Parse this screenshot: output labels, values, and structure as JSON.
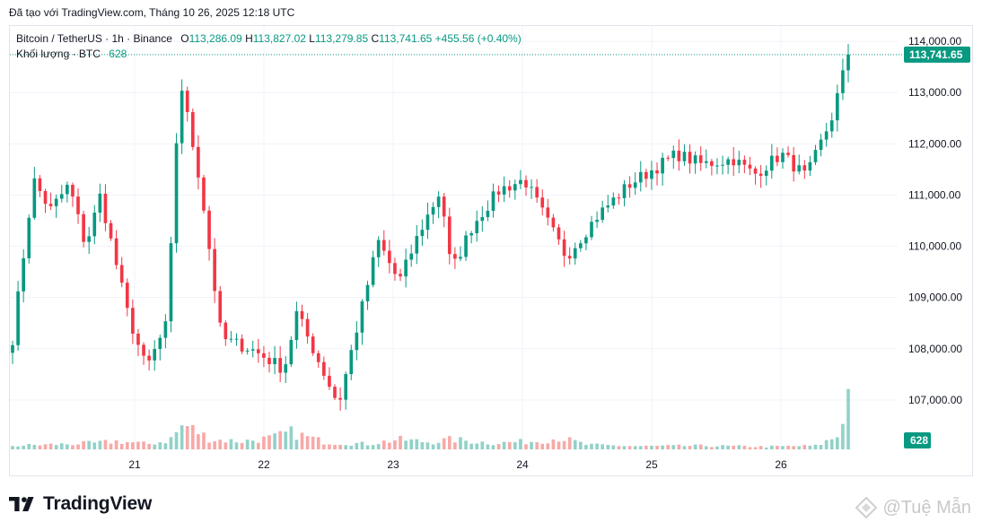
{
  "header": {
    "title": "Đã tạo với TradingView.com, Tháng 10 26, 2025 12:18 UTC"
  },
  "legend": {
    "symbol": "Bitcoin / TetherUS · 1h · Binance",
    "open_label": "O",
    "open": "113,286.09",
    "high_label": "H",
    "high": "113,827.02",
    "low_label": "L",
    "low": "113,279.85",
    "close_label": "C",
    "close": "113,741.65",
    "change": "+455.56 (+0.40%)",
    "volume_label": "Khối lượng · BTC",
    "volume": "628"
  },
  "brand": {
    "name": "TradingView"
  },
  "watermark": {
    "text": "@Tuệ Mẫn"
  },
  "chart_data": {
    "type": "candlestick",
    "symbol": "BTCUSDT",
    "interval": "1h",
    "y_ticks": [
      107000,
      108000,
      109000,
      110000,
      111000,
      112000,
      113000,
      114000
    ],
    "y_tick_labels": [
      "107,000.00",
      "108,000.00",
      "109,000.00",
      "110,000.00",
      "111,000.00",
      "112,000.00",
      "113,000.00",
      "114,000.00"
    ],
    "ylim": [
      106000,
      114300
    ],
    "x_ticks": [
      "21",
      "22",
      "23",
      "24",
      "25",
      "26"
    ],
    "last_price": 113741.65,
    "last_price_label": "113,741.65",
    "last_volume": 628,
    "last_volume_label": "628",
    "colors": {
      "up": "#089981",
      "down": "#f23645",
      "vol_up": "#92d2c8",
      "vol_down": "#f7a9a7",
      "grid": "#f0f3fa"
    },
    "waypoints": [
      [
        108200,
        0
      ],
      [
        111300,
        10
      ],
      [
        110700,
        18
      ],
      [
        111200,
        27
      ],
      [
        110000,
        35
      ],
      [
        111000,
        42
      ],
      [
        108700,
        55
      ],
      [
        107600,
        64
      ],
      [
        108500,
        74
      ],
      [
        113300,
        80
      ],
      [
        111200,
        90
      ],
      [
        108200,
        100
      ],
      [
        108000,
        114
      ],
      [
        107600,
        130
      ],
      [
        108700,
        136
      ],
      [
        107800,
        146
      ],
      [
        106900,
        156
      ],
      [
        108100,
        163
      ],
      [
        110100,
        175
      ],
      [
        109300,
        185
      ],
      [
        110300,
        195
      ],
      [
        111100,
        205
      ],
      [
        109500,
        210
      ],
      [
        110400,
        220
      ],
      [
        111100,
        233
      ],
      [
        111300,
        245
      ],
      [
        109800,
        265
      ],
      [
        110600,
        280
      ],
      [
        111200,
        295
      ],
      [
        111800,
        318
      ],
      [
        111600,
        330
      ],
      [
        111700,
        345
      ],
      [
        111400,
        355
      ],
      [
        111800,
        368
      ],
      [
        111350,
        380
      ],
      [
        112500,
        392
      ],
      [
        113741.65,
        400
      ]
    ],
    "volume_waypoints": [
      [
        40,
        0
      ],
      [
        55,
        20
      ],
      [
        70,
        40
      ],
      [
        90,
        50
      ],
      [
        60,
        65
      ],
      [
        100,
        75
      ],
      [
        280,
        82
      ],
      [
        110,
        95
      ],
      [
        90,
        110
      ],
      [
        130,
        125
      ],
      [
        190,
        133
      ],
      [
        80,
        150
      ],
      [
        60,
        170
      ],
      [
        110,
        185
      ],
      [
        80,
        200
      ],
      [
        110,
        210
      ],
      [
        70,
        230
      ],
      [
        90,
        250
      ],
      [
        130,
        262
      ],
      [
        50,
        275
      ],
      [
        35,
        300
      ],
      [
        40,
        330
      ],
      [
        30,
        360
      ],
      [
        40,
        385
      ],
      [
        150,
        395
      ],
      [
        628,
        400
      ]
    ],
    "volume_max": 1400
  }
}
